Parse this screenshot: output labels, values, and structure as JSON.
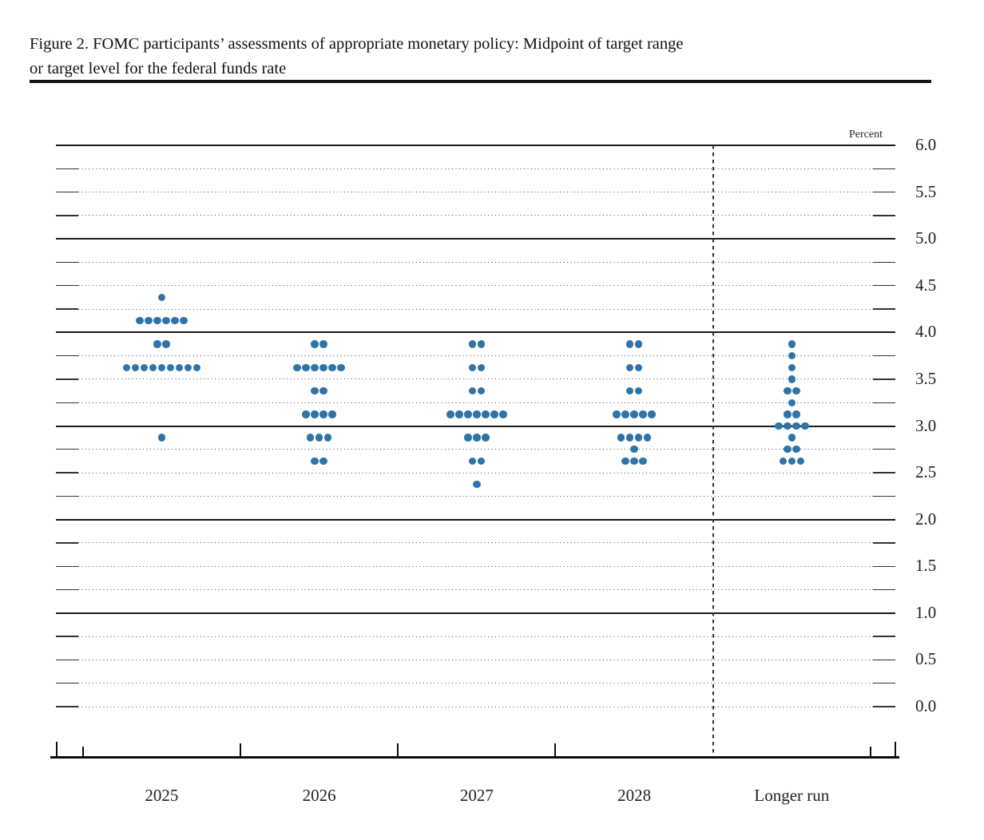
{
  "figure": {
    "title_line1": "Figure 2. FOMC participants’ assessments of appropriate monetary policy: Midpoint of target range",
    "title_line2": "or target level for the federal funds rate"
  },
  "chart_data": {
    "type": "scatter",
    "subtype": "fomc-dot-plot",
    "percent_label": "Percent",
    "categories": [
      "2025",
      "2026",
      "2027",
      "2028",
      "Longer run"
    ],
    "y_axis": {
      "min": 0.0,
      "max": 6.0,
      "label_step": 0.5,
      "grid_step": 0.25,
      "tick_labels": [
        "6.0",
        "5.5",
        "5.0",
        "4.5",
        "4.0",
        "3.5",
        "3.0",
        "2.5",
        "2.0",
        "1.5",
        "1.0",
        "0.5",
        "0.0"
      ],
      "solid_line_values": [
        6.0,
        5.0,
        4.0,
        3.0,
        2.0,
        1.0
      ]
    },
    "legend_position": "none",
    "grid": "dotted quarter-point lines, solid integer lines",
    "separator_before_category": "Longer run",
    "series": [
      {
        "name": "2025",
        "dots": [
          {
            "value": 4.375,
            "count": 1
          },
          {
            "value": 4.125,
            "count": 6
          },
          {
            "value": 3.875,
            "count": 2
          },
          {
            "value": 3.625,
            "count": 9
          },
          {
            "value": 2.875,
            "count": 1
          }
        ]
      },
      {
        "name": "2026",
        "dots": [
          {
            "value": 3.875,
            "count": 2
          },
          {
            "value": 3.625,
            "count": 6
          },
          {
            "value": 3.375,
            "count": 2
          },
          {
            "value": 3.125,
            "count": 4
          },
          {
            "value": 2.875,
            "count": 3
          },
          {
            "value": 2.625,
            "count": 2
          }
        ]
      },
      {
        "name": "2027",
        "dots": [
          {
            "value": 3.875,
            "count": 2
          },
          {
            "value": 3.625,
            "count": 2
          },
          {
            "value": 3.375,
            "count": 2
          },
          {
            "value": 3.125,
            "count": 7
          },
          {
            "value": 2.875,
            "count": 3
          },
          {
            "value": 2.625,
            "count": 2
          },
          {
            "value": 2.375,
            "count": 1
          }
        ]
      },
      {
        "name": "2028",
        "dots": [
          {
            "value": 3.875,
            "count": 2
          },
          {
            "value": 3.625,
            "count": 2
          },
          {
            "value": 3.375,
            "count": 2
          },
          {
            "value": 3.125,
            "count": 5
          },
          {
            "value": 2.875,
            "count": 4
          },
          {
            "value": 2.75,
            "count": 1
          },
          {
            "value": 2.625,
            "count": 3
          }
        ]
      },
      {
        "name": "Longer run",
        "dots": [
          {
            "value": 3.875,
            "count": 1
          },
          {
            "value": 3.75,
            "count": 1
          },
          {
            "value": 3.625,
            "count": 1
          },
          {
            "value": 3.5,
            "count": 1
          },
          {
            "value": 3.375,
            "count": 2
          },
          {
            "value": 3.25,
            "count": 1
          },
          {
            "value": 3.125,
            "count": 2
          },
          {
            "value": 3.0,
            "count": 4
          },
          {
            "value": 2.875,
            "count": 1
          },
          {
            "value": 2.75,
            "count": 2
          },
          {
            "value": 2.625,
            "count": 3
          }
        ]
      }
    ],
    "dot_color": "#2E74A8"
  }
}
